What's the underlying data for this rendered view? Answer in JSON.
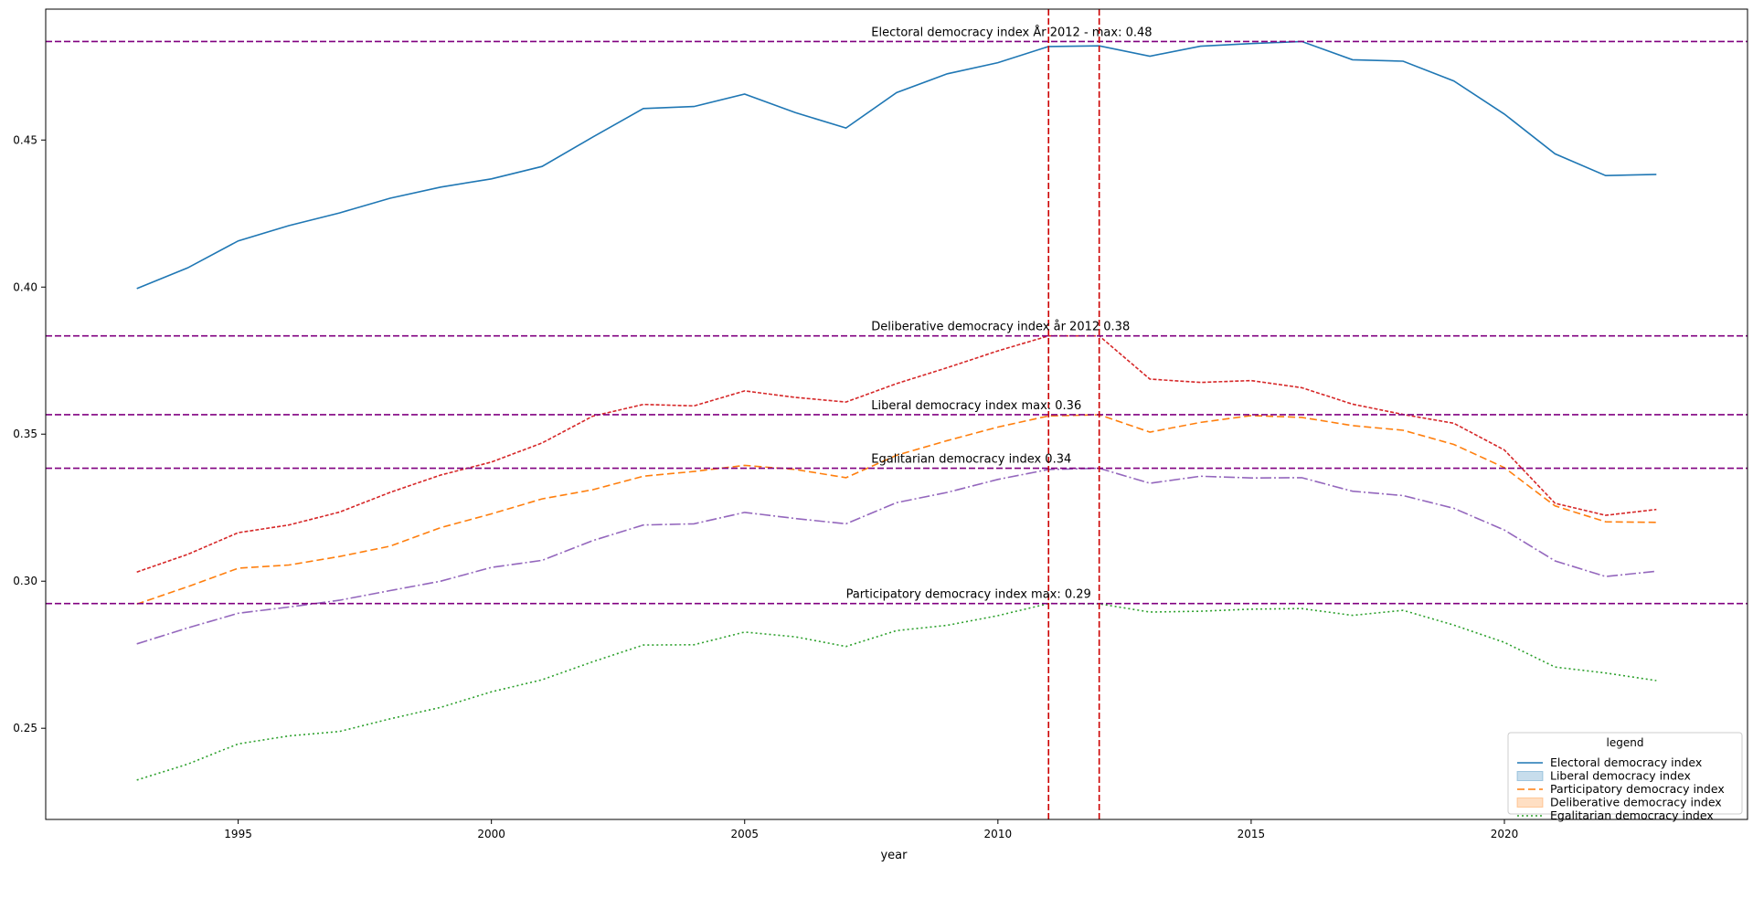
{
  "chart_data": {
    "type": "line",
    "title": "",
    "xlabel": "year",
    "ylabel": "",
    "xlim": [
      1991.2,
      2024.8
    ],
    "ylim": [
      0.219,
      0.4945
    ],
    "x_ticks": [
      "1995",
      "2000",
      "2005",
      "2010",
      "2015",
      "2020"
    ],
    "y_ticks": [
      "0.25",
      "0.30",
      "0.35",
      "0.40",
      "0.45"
    ],
    "grid": false,
    "x": [
      1993,
      1994,
      1995,
      1996,
      1997,
      1998,
      1999,
      2000,
      2001,
      2002,
      2003,
      2004,
      2005,
      2006,
      2007,
      2008,
      2009,
      2010,
      2011,
      2012,
      2013,
      2014,
      2015,
      2016,
      2017,
      2018,
      2019,
      2020,
      2021,
      2022,
      2023
    ],
    "series": [
      {
        "key": "electoral",
        "color": "#1f77b4",
        "dash": "",
        "values": [
          0.3995,
          0.4065,
          0.4157,
          0.4209,
          0.4252,
          0.4302,
          0.434,
          0.4368,
          0.441,
          0.451,
          0.4607,
          0.4614,
          0.4656,
          0.4593,
          0.4541,
          0.4661,
          0.4725,
          0.4763,
          0.4818,
          0.482,
          0.4785,
          0.4819,
          0.4828,
          0.4835,
          0.4773,
          0.4768,
          0.4701,
          0.4588,
          0.4453,
          0.4379,
          0.4383
        ]
      },
      {
        "key": "deliberative",
        "color": "#d62728",
        "dash": "4,2",
        "values": [
          0.3031,
          0.3091,
          0.3165,
          0.3191,
          0.3235,
          0.3302,
          0.3361,
          0.3405,
          0.347,
          0.3561,
          0.3601,
          0.3596,
          0.3647,
          0.3625,
          0.3609,
          0.3672,
          0.3726,
          0.3783,
          0.3834,
          0.3834,
          0.3687,
          0.3676,
          0.3682,
          0.3658,
          0.3602,
          0.3567,
          0.3537,
          0.3446,
          0.3265,
          0.3224,
          0.3244
        ]
      },
      {
        "key": "participatory",
        "color": "#ff7f0e",
        "dash": "8,4",
        "values": [
          0.2922,
          0.2981,
          0.3044,
          0.3055,
          0.3084,
          0.3119,
          0.3182,
          0.3229,
          0.328,
          0.3311,
          0.3357,
          0.3373,
          0.3394,
          0.338,
          0.3352,
          0.3428,
          0.3478,
          0.3524,
          0.3562,
          0.3566,
          0.3507,
          0.354,
          0.3563,
          0.3557,
          0.3529,
          0.3513,
          0.3465,
          0.3386,
          0.3256,
          0.3202,
          0.32
        ]
      },
      {
        "key": "egalitarian_purple",
        "color": "#9467bd",
        "dash": "12,3,2,3",
        "values": [
          0.2787,
          0.2841,
          0.2891,
          0.2912,
          0.2935,
          0.2968,
          0.3,
          0.3047,
          0.3071,
          0.3138,
          0.3191,
          0.3195,
          0.3234,
          0.3213,
          0.3195,
          0.3267,
          0.3302,
          0.3346,
          0.338,
          0.3384,
          0.3333,
          0.3357,
          0.3351,
          0.3352,
          0.3306,
          0.3291,
          0.3248,
          0.3174,
          0.3069,
          0.3016,
          0.3034
        ]
      },
      {
        "key": "egalitarian_green",
        "color": "#2ca02c",
        "dash": "2,3",
        "values": [
          0.2324,
          0.2378,
          0.2447,
          0.2474,
          0.2489,
          0.2532,
          0.2571,
          0.2624,
          0.2665,
          0.2726,
          0.2783,
          0.2784,
          0.2827,
          0.2811,
          0.2778,
          0.2832,
          0.285,
          0.2883,
          0.2924,
          0.2923,
          0.2895,
          0.2898,
          0.2905,
          0.2907,
          0.2884,
          0.2901,
          0.2851,
          0.2792,
          0.2708,
          0.2688,
          0.2662
        ]
      }
    ],
    "hlines": [
      {
        "y": 0.4835,
        "color": "#800080",
        "label": "Electoral democracy index År 2012 - max: 0.48",
        "label_x": 2007.5
      },
      {
        "y": 0.3834,
        "color": "#800080",
        "label": "Deliberative democracy index år 2012 0.38",
        "label_x": 2007.5
      },
      {
        "y": 0.3566,
        "color": "#800080",
        "label": "Liberal democracy index max: 0.36",
        "label_x": 2007.5
      },
      {
        "y": 0.3384,
        "color": "#800080",
        "label": "Egalitarian democracy index 0.34",
        "label_x": 2007.5
      },
      {
        "y": 0.2924,
        "color": "#800080",
        "label": "Participatory democracy index max: 0.29",
        "label_x": 2007.0
      }
    ],
    "vlines": [
      {
        "x": 2011,
        "color": "#cc0000"
      },
      {
        "x": 2012,
        "color": "#cc0000"
      }
    ],
    "legend": {
      "title": "legend",
      "placement": "lower-right",
      "entries": [
        {
          "label": "Electoral democracy index",
          "kind": "line",
          "color": "#1f77b4",
          "dash": ""
        },
        {
          "label": "Liberal democracy index",
          "kind": "patch",
          "color": "#1f77b4"
        },
        {
          "label": "Participatory democracy index",
          "kind": "line",
          "color": "#ff7f0e",
          "dash": "8,4"
        },
        {
          "label": "Deliberative democracy index",
          "kind": "patch",
          "color": "#ff7f0e"
        },
        {
          "label": "Egalitarian democracy index",
          "kind": "line",
          "color": "#2ca02c",
          "dash": "2,3"
        }
      ]
    }
  }
}
